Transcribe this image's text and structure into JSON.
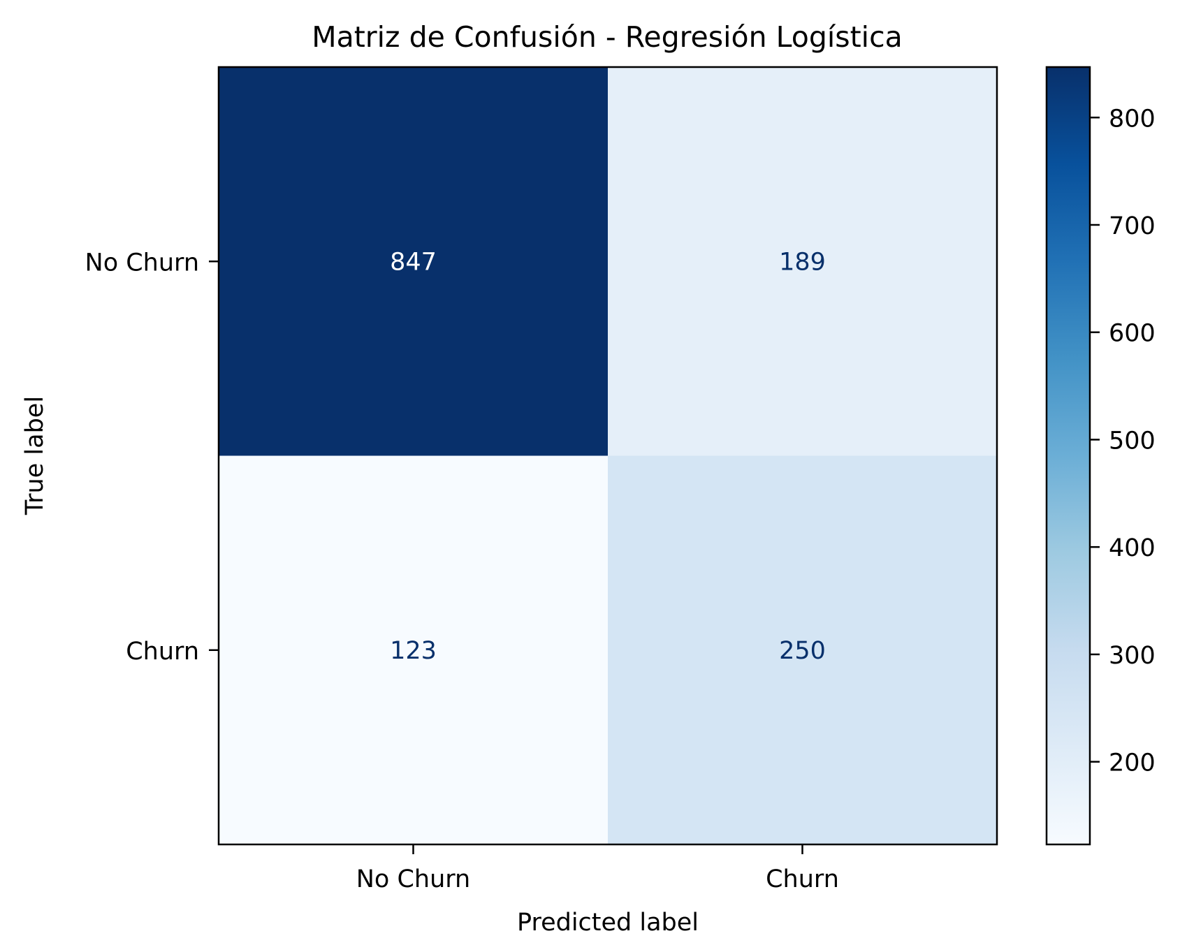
{
  "chart_data": {
    "type": "heatmap",
    "title": "Matriz de Confusión - Regresión Logística",
    "xlabel": "Predicted label",
    "ylabel": "True label",
    "x_categories": [
      "No Churn",
      "Churn"
    ],
    "y_categories": [
      "No Churn",
      "Churn"
    ],
    "matrix": [
      [
        847,
        189
      ],
      [
        123,
        250
      ]
    ],
    "colormap": "Blues",
    "colorbar": {
      "min": 123,
      "max": 847,
      "ticks": [
        200,
        300,
        400,
        500,
        600,
        700,
        800
      ]
    },
    "cell_text_colors": {
      "dark_bg": "#ffffff",
      "light_bg": "#08306b"
    }
  }
}
